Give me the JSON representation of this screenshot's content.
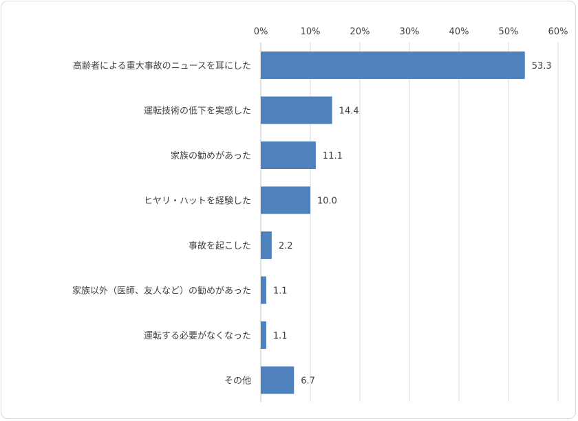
{
  "chart_data": {
    "type": "bar",
    "orientation": "horizontal",
    "categories": [
      "高齢者による重大事故のニュースを耳にした",
      "運転技術の低下を実感した",
      "家族の勧めがあった",
      "ヒヤリ・ハットを経験した",
      "事故を起こした",
      "家族以外（医師、友人など）の勧めがあった",
      "運転する必要がなくなった",
      "その他"
    ],
    "values": [
      53.3,
      14.4,
      11.1,
      10.0,
      2.2,
      1.1,
      1.1,
      6.7
    ],
    "value_labels": [
      "53.3",
      "14.4",
      "11.1",
      "10.0",
      "2.2",
      "1.1",
      "1.1",
      "6.7"
    ],
    "xlim": [
      0,
      60
    ],
    "x_ticks": [
      "0%",
      "10%",
      "20%",
      "30%",
      "40%",
      "50%",
      "60%"
    ],
    "x_axis_position": "top",
    "grid": true,
    "bar_color": "#4f81bd",
    "title": "",
    "xlabel": "",
    "ylabel": ""
  }
}
